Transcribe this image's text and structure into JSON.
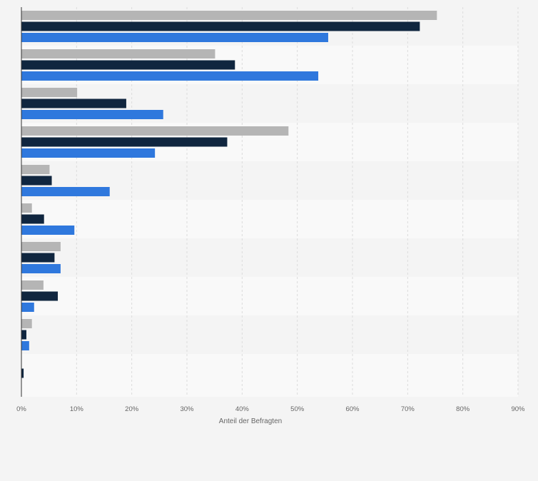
{
  "chart_data": {
    "type": "bar",
    "orientation": "horizontal",
    "xlabel": "Anteil der Befragten",
    "ylabel": "",
    "xlim": [
      0,
      90
    ],
    "x_ticks": [
      0,
      10,
      20,
      30,
      40,
      50,
      60,
      70,
      80,
      90
    ],
    "tick_labels": [
      "0%",
      "10%",
      "20%",
      "30%",
      "40%",
      "50%",
      "60%",
      "70%",
      "80%",
      "90%"
    ],
    "grid": true,
    "legend": "none",
    "categories": [
      "",
      "",
      "",
      "",
      "",
      "",
      "",
      "",
      "",
      ""
    ],
    "series": [
      {
        "color": "#b5b5b5",
        "values": [
          75.3,
          35.1,
          10.1,
          48.4,
          5.1,
          1.9,
          7.1,
          4.0,
          1.9,
          0
        ]
      },
      {
        "color": "#10263f",
        "values": [
          72.2,
          38.7,
          19.0,
          37.3,
          5.5,
          4.1,
          6.0,
          6.6,
          0.9,
          0.4
        ]
      },
      {
        "color": "#2f78dd",
        "values": [
          55.6,
          53.8,
          25.7,
          24.2,
          16.0,
          9.6,
          7.1,
          2.3,
          1.4,
          0
        ]
      }
    ]
  }
}
